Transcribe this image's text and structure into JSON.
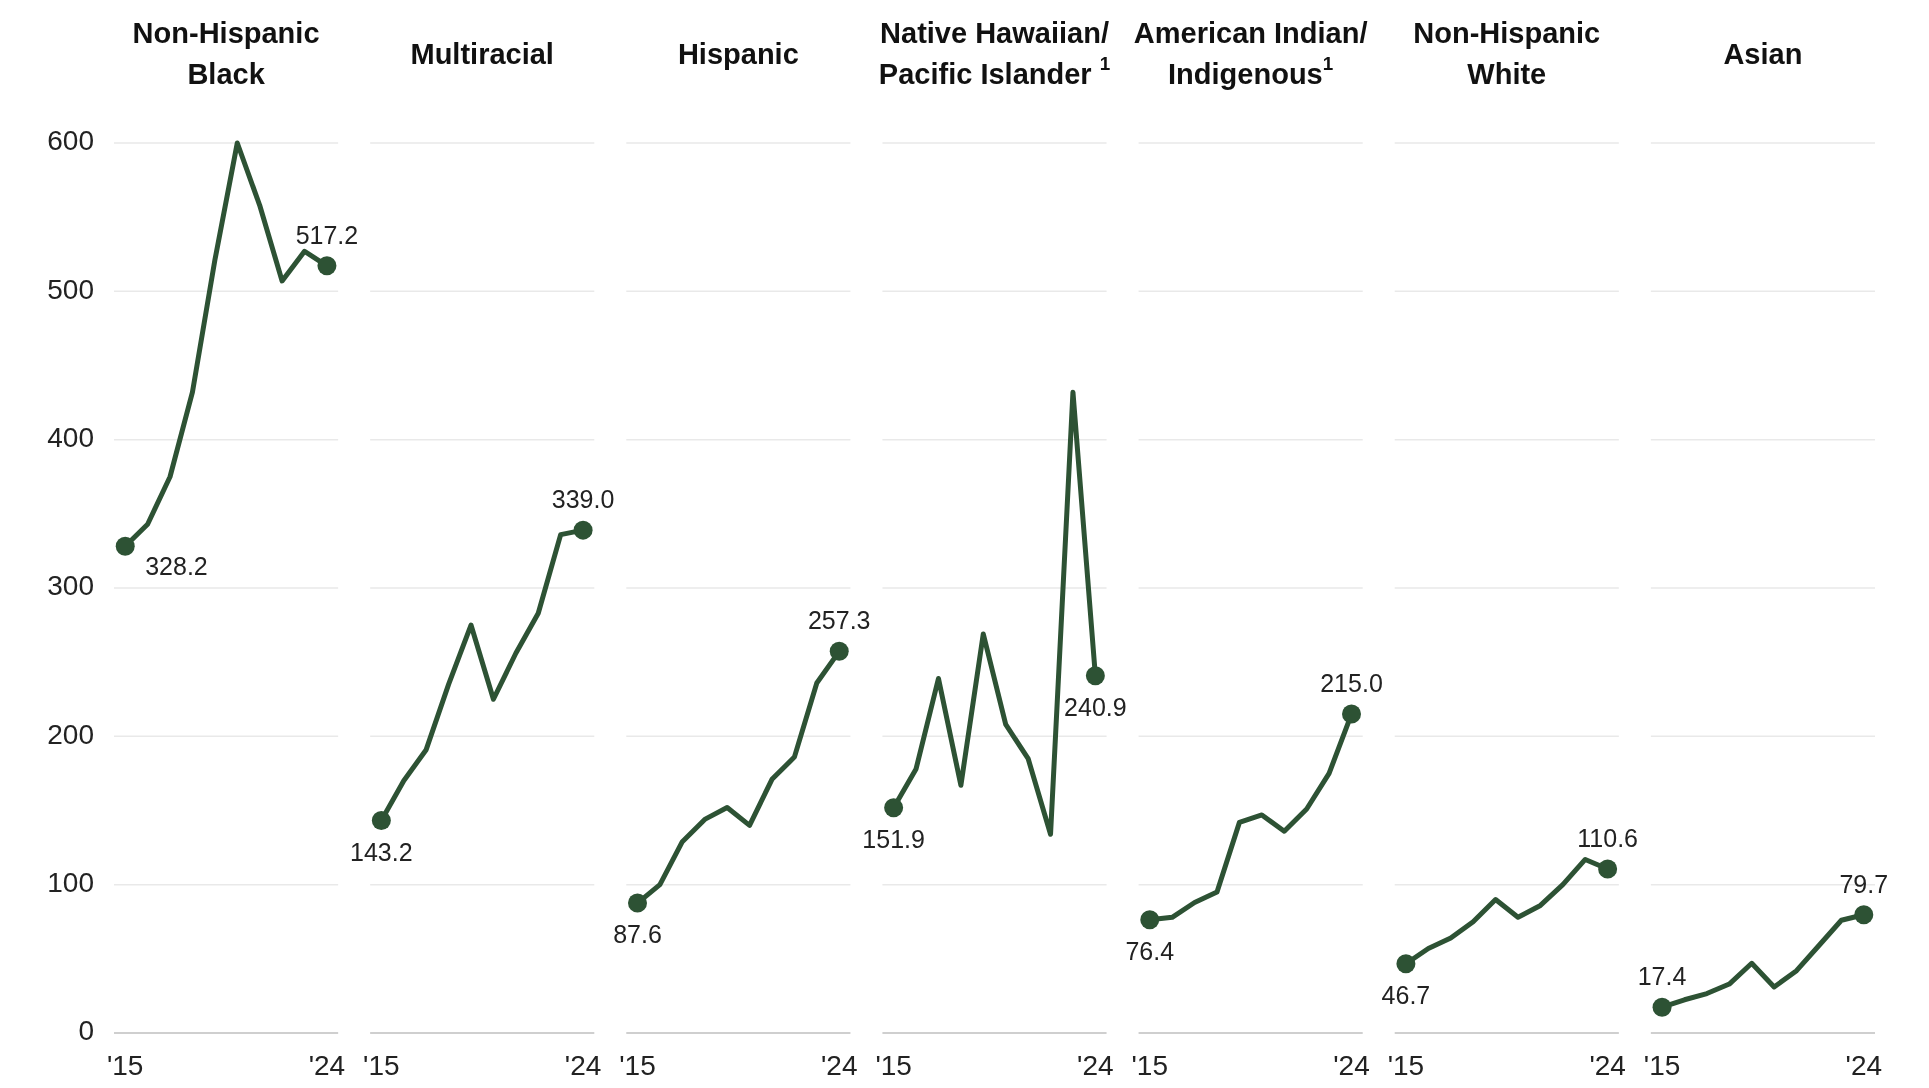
{
  "chart_data": [
    {
      "type": "line",
      "title": "Non-Hispanic Black",
      "categories": [
        "'15",
        null,
        null,
        null,
        null,
        null,
        null,
        null,
        null,
        "'24"
      ],
      "ylim": [
        0,
        600
      ],
      "yticks": [
        0,
        100,
        200,
        300,
        400,
        500,
        600
      ],
      "grid": "y",
      "series": [
        {
          "color": "#2d5234",
          "values": [
            328.2,
            343,
            375,
            432,
            521,
            600,
            558,
            507,
            527,
            517.2
          ],
          "value_labels": [
            "328.2",
            null,
            null,
            null,
            null,
            null,
            null,
            null,
            null,
            "517.2"
          ]
        }
      ]
    },
    {
      "type": "line",
      "title": "Multiracial",
      "categories": [
        "'15",
        null,
        null,
        null,
        null,
        null,
        null,
        null,
        null,
        "'24"
      ],
      "ylim": [
        0,
        600
      ],
      "yticks": [
        0,
        100,
        200,
        300,
        400,
        500,
        600
      ],
      "tick_labels": "x",
      "grid": "y",
      "series": [
        {
          "color": "#2d5234",
          "values": [
            143.2,
            170,
            191,
            235,
            275,
            225,
            256,
            283,
            336,
            339.0
          ],
          "value_labels": [
            "143.2",
            null,
            null,
            null,
            null,
            null,
            null,
            null,
            null,
            "339.0"
          ]
        }
      ]
    },
    {
      "type": "line",
      "title": "Hispanic",
      "categories": [
        "'15",
        null,
        null,
        null,
        null,
        null,
        null,
        null,
        null,
        "'24"
      ],
      "ylim": [
        0,
        600
      ],
      "yticks": [
        0,
        100,
        200,
        300,
        400,
        500,
        600
      ],
      "tick_labels": "x",
      "grid": "y",
      "series": [
        {
          "color": "#2d5234",
          "values": [
            87.6,
            100,
            129,
            144,
            152,
            140,
            171,
            186,
            236,
            257.3
          ],
          "value_labels": [
            "87.6",
            null,
            null,
            null,
            null,
            null,
            null,
            null,
            null,
            "257.3"
          ]
        }
      ]
    },
    {
      "type": "line",
      "title": "Native Hawaiian/ Pacific Islander $^{1}$",
      "categories": [
        "'15",
        null,
        null,
        null,
        null,
        null,
        null,
        null,
        null,
        "'24"
      ],
      "ylim": [
        0,
        600
      ],
      "yticks": [
        0,
        100,
        200,
        300,
        400,
        500,
        600
      ],
      "tick_labels": "x",
      "grid": "y",
      "series": [
        {
          "color": "#2d5234",
          "values": [
            151.9,
            178,
            239,
            167,
            269,
            208,
            185,
            134,
            432,
            240.9
          ],
          "value_labels": [
            "151.9",
            null,
            null,
            null,
            null,
            null,
            null,
            null,
            null,
            "240.9"
          ]
        }
      ]
    },
    {
      "type": "line",
      "title": "American Indian/ Indigenous$^{1}$",
      "categories": [
        "'15",
        null,
        null,
        null,
        null,
        null,
        null,
        null,
        null,
        "'24"
      ],
      "ylim": [
        0,
        600
      ],
      "yticks": [
        0,
        100,
        200,
        300,
        400,
        500,
        600
      ],
      "tick_labels": "x",
      "grid": "y",
      "series": [
        {
          "color": "#2d5234",
          "values": [
            76.4,
            78,
            88,
            95,
            142,
            147,
            136,
            151,
            175,
            215.0
          ],
          "value_labels": [
            "76.4",
            null,
            null,
            null,
            null,
            null,
            null,
            null,
            null,
            "215.0"
          ]
        }
      ]
    },
    {
      "type": "line",
      "title": "Non-Hispanic White",
      "categories": [
        "'15",
        null,
        null,
        null,
        null,
        null,
        null,
        null,
        null,
        "'24"
      ],
      "ylim": [
        0,
        600
      ],
      "yticks": [
        0,
        100,
        200,
        300,
        400,
        500,
        600
      ],
      "tick_labels": "x",
      "grid": "y",
      "series": [
        {
          "color": "#2d5234",
          "values": [
            46.7,
            57,
            64,
            75,
            90,
            78,
            86,
            100,
            117,
            110.6
          ],
          "value_labels": [
            "46.7",
            null,
            null,
            null,
            null,
            null,
            null,
            null,
            null,
            "110.6"
          ]
        }
      ]
    },
    {
      "type": "line",
      "title": "Asian",
      "categories": [
        "'15",
        null,
        null,
        null,
        null,
        null,
        null,
        null,
        null,
        "'24"
      ],
      "ylim": [
        0,
        600
      ],
      "yticks": [
        0,
        100,
        200,
        300,
        400,
        500,
        600
      ],
      "tick_labels": "x",
      "grid": "y",
      "series": [
        {
          "color": "#2d5234",
          "values": [
            17.4,
            22.4,
            26.6,
            33,
            47,
            31,
            42,
            59,
            76,
            79.7
          ],
          "value_labels": [
            "17.4",
            null,
            null,
            null,
            null,
            null,
            null,
            null,
            null,
            "79.7"
          ]
        }
      ]
    }
  ]
}
